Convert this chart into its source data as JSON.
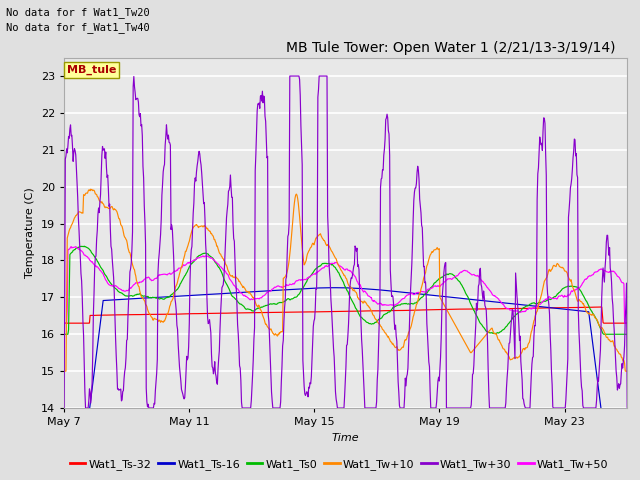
{
  "title": "MB Tule Tower: Open Water 1 (2/21/13-3/19/14)",
  "no_data_text": [
    "No data for f Wat1_Tw20",
    "No data for f̲Wat1̲Tw40"
  ],
  "legend_box_text": "MB_tule",
  "xlabel": "Time",
  "ylabel": "Temperature (C)",
  "ylim": [
    14.0,
    23.5
  ],
  "yticks": [
    14.0,
    15.0,
    16.0,
    17.0,
    18.0,
    19.0,
    20.0,
    21.0,
    22.0,
    23.0
  ],
  "xtick_labels": [
    "May 7",
    "May 11",
    "May 15",
    "May 19",
    "May 23"
  ],
  "xtick_positions": [
    0,
    4,
    8,
    12,
    16
  ],
  "total_days": 18,
  "series_colors": {
    "Wat1_Ts-32": "#ff0000",
    "Wat1_Ts-16": "#0000cc",
    "Wat1_Ts0": "#00bb00",
    "Wat1_Tw+10": "#ff8800",
    "Wat1_Tw+30": "#8800cc",
    "Wat1_Tw+50": "#ff00ff"
  },
  "bg_color": "#e0e0e0",
  "plot_bg_color": "#e8e8e8",
  "grid_color": "#ffffff",
  "title_fontsize": 10,
  "axis_fontsize": 8,
  "tick_fontsize": 8,
  "legend_fontsize": 8
}
